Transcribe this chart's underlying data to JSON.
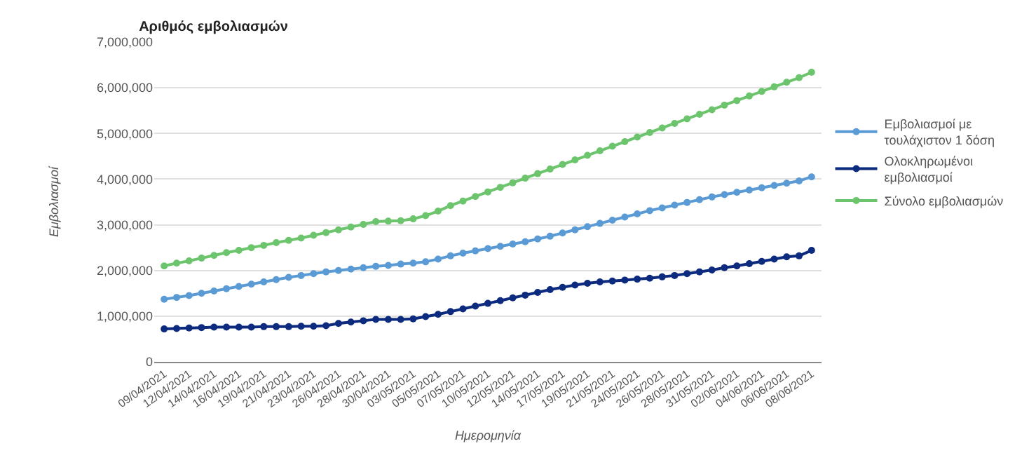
{
  "chart_data": {
    "type": "line",
    "title": "Αριθμός εμβολιασμών",
    "xlabel": "Ημερομηνία",
    "ylabel": "Εμβολιασμοί",
    "categories": [
      "09/04/2021",
      null,
      "12/04/2021",
      null,
      "14/04/2021",
      null,
      "16/04/2021",
      null,
      "19/04/2021",
      null,
      "21/04/2021",
      null,
      "23/04/2021",
      null,
      "26/04/2021",
      null,
      "28/04/2021",
      null,
      "30/04/2021",
      null,
      "03/05/2021",
      null,
      "05/05/2021",
      null,
      "07/05/2021",
      null,
      "10/05/2021",
      null,
      "12/05/2021",
      null,
      "14/05/2021",
      null,
      "17/05/2021",
      null,
      "19/05/2021",
      null,
      "21/05/2021",
      null,
      "24/05/2021",
      null,
      "26/05/2021",
      null,
      "28/05/2021",
      null,
      "31/05/2021",
      null,
      "02/06/2021",
      null,
      "04/06/2021",
      null,
      "06/06/2021",
      null,
      "08/06/2021"
    ],
    "series": [
      {
        "name": "Εμβολιασμοί με τουλάχιστον 1 δόση",
        "color": "#5b9bd5",
        "values": [
          1370000,
          1410000,
          1450000,
          1500000,
          1550000,
          1600000,
          1650000,
          1700000,
          1750000,
          1800000,
          1850000,
          1890000,
          1930000,
          1970000,
          2000000,
          2030000,
          2060000,
          2090000,
          2110000,
          2140000,
          2160000,
          2190000,
          2250000,
          2320000,
          2380000,
          2430000,
          2480000,
          2530000,
          2580000,
          2630000,
          2690000,
          2750000,
          2820000,
          2890000,
          2960000,
          3030000,
          3100000,
          3170000,
          3240000,
          3310000,
          3370000,
          3430000,
          3490000,
          3550000,
          3610000,
          3660000,
          3710000,
          3760000,
          3810000,
          3860000,
          3910000,
          3960000,
          4050000
        ]
      },
      {
        "name": "Ολοκληρωμένοι εμβολιασμοί",
        "color": "#0d2b7e",
        "values": [
          720000,
          730000,
          740000,
          750000,
          760000,
          760000,
          760000,
          760000,
          770000,
          770000,
          770000,
          780000,
          780000,
          790000,
          840000,
          870000,
          900000,
          930000,
          930000,
          930000,
          940000,
          990000,
          1040000,
          1100000,
          1160000,
          1220000,
          1280000,
          1340000,
          1400000,
          1460000,
          1520000,
          1580000,
          1630000,
          1680000,
          1720000,
          1750000,
          1770000,
          1790000,
          1810000,
          1830000,
          1860000,
          1890000,
          1930000,
          1970000,
          2010000,
          2060000,
          2100000,
          2150000,
          2200000,
          2250000,
          2300000,
          2320000,
          2440000
        ]
      },
      {
        "name": "Σύνολο εμβολιασμών",
        "color": "#6cc56c",
        "values": [
          2100000,
          2160000,
          2210000,
          2270000,
          2330000,
          2390000,
          2440000,
          2500000,
          2550000,
          2610000,
          2660000,
          2710000,
          2770000,
          2830000,
          2890000,
          2950000,
          3010000,
          3070000,
          3080000,
          3090000,
          3130000,
          3200000,
          3300000,
          3420000,
          3520000,
          3620000,
          3720000,
          3820000,
          3920000,
          4020000,
          4120000,
          4220000,
          4320000,
          4420000,
          4520000,
          4620000,
          4720000,
          4820000,
          4920000,
          5020000,
          5120000,
          5220000,
          5320000,
          5420000,
          5520000,
          5620000,
          5720000,
          5820000,
          5920000,
          6020000,
          6120000,
          6220000,
          6340000
        ]
      }
    ],
    "ylim": [
      0,
      7000000
    ],
    "yticks": [
      0,
      {
        "value": 1000000,
        "label": "1,000,000"
      },
      {
        "value": 2000000,
        "label": "2,000,000"
      },
      {
        "value": 3000000,
        "label": "3,000,000"
      },
      {
        "value": 4000000,
        "label": "4,000,000"
      },
      {
        "value": 5000000,
        "label": "5,000,000"
      },
      {
        "value": 6000000,
        "label": "6,000,000"
      },
      {
        "value": 7000000,
        "label": "7,000,000"
      }
    ],
    "grid": "y",
    "legend": "right",
    "marker": "circle",
    "line_style": "solid"
  }
}
